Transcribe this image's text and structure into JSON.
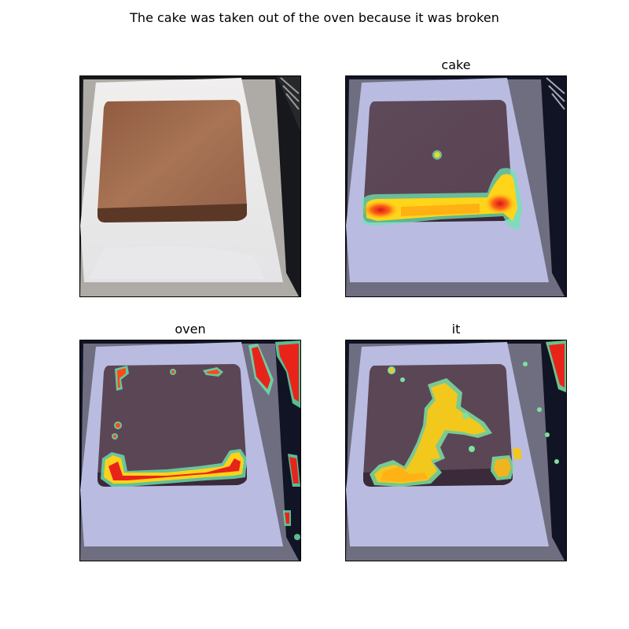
{
  "figure": {
    "title": "The cake was taken out of the oven because it was broken"
  },
  "panels": [
    {
      "title": "",
      "overlay": "none"
    },
    {
      "title": "cake",
      "overlay": "attention heatmap on the front-bottom edge of the cake"
    },
    {
      "title": "oven",
      "overlay": "attention heatmap on the cake outline and oven rack edges"
    },
    {
      "title": "it",
      "overlay": "attention heatmap over the center of the cake surface"
    }
  ],
  "colors": {
    "background_dark": "#111318",
    "tray": "#b9b6b1",
    "paper": "#f4f4f6",
    "cake_top": "#9c6a4d",
    "cake_side": "#5e3a27",
    "heat_high": "#e4141a",
    "heat_mid": "#ffd51a",
    "heat_low": "#5ee0a0"
  }
}
